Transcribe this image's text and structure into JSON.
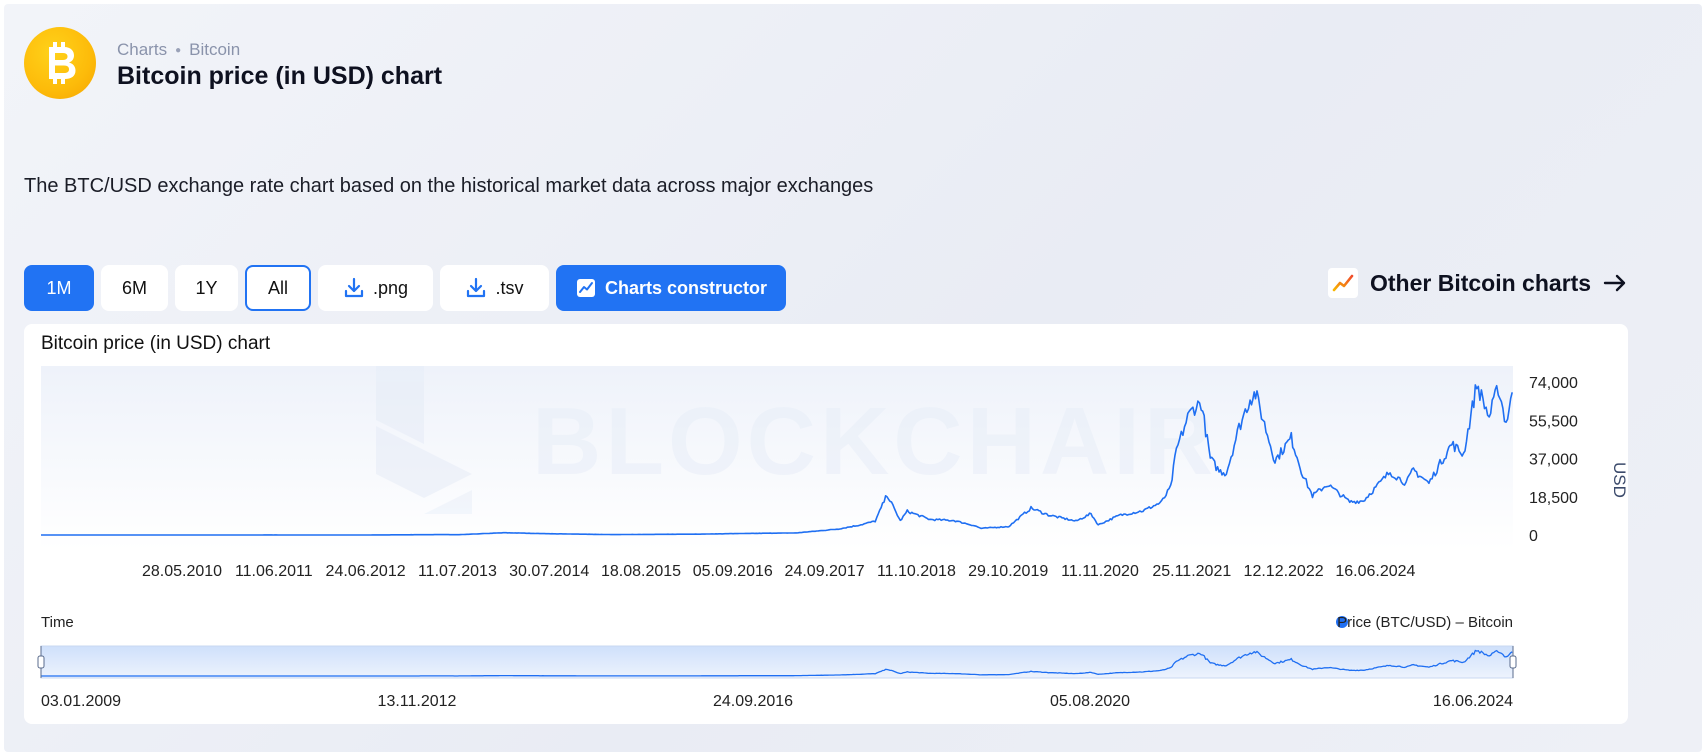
{
  "header": {
    "breadcrumbs": [
      "Charts",
      "Bitcoin"
    ],
    "title": "Bitcoin price (in USD) chart",
    "description": "The BTC/USD exchange rate chart based on the historical market data across major exchanges"
  },
  "toolbar": {
    "ranges": [
      "1M",
      "6M",
      "1Y",
      "All"
    ],
    "active_range": "1M",
    "outlined_range": "All",
    "download_png": ".png",
    "download_tsv": ".tsv",
    "constructor": "Charts constructor",
    "other_charts": "Other Bitcoin charts"
  },
  "colors": {
    "accent": "#2173f3",
    "line": "#1f6ff2",
    "logo": "#fdbb0a"
  },
  "icons": [
    "bitcoin-icon",
    "download-icon",
    "chart-icon",
    "trend-icon",
    "arrow-right-icon"
  ],
  "chart_data": {
    "type": "line",
    "title": "Bitcoin price (in USD) chart",
    "xlabel": "Time",
    "ylabel": "USD",
    "ylim": [
      0,
      74000
    ],
    "y_ticks": [
      "0",
      "18,500",
      "37,000",
      "55,500",
      "74,000"
    ],
    "y_tick_values": [
      0,
      18500,
      37000,
      55500,
      74000
    ],
    "x_ticks": [
      "28.05.2010",
      "11.06.2011",
      "24.06.2012",
      "11.07.2013",
      "30.07.2014",
      "18.08.2015",
      "05.09.2016",
      "24.09.2017",
      "11.10.2018",
      "29.10.2019",
      "11.11.2020",
      "25.11.2021",
      "12.12.2022",
      "16.06.2024"
    ],
    "x_range": [
      "03.01.2009",
      "08.2024"
    ],
    "grid": false,
    "legend": "bottom-right",
    "watermark": "BLOCKCHAIR",
    "series": [
      {
        "name": "Price (BTC/USD) – Bitcoin",
        "points": [
          [
            "2009-01-03",
            0
          ],
          [
            "2010-07-15",
            0.05
          ],
          [
            "2011-06-08",
            25
          ],
          [
            "2012-06-01",
            6
          ],
          [
            "2013-04-09",
            200
          ],
          [
            "2013-06-01",
            120
          ],
          [
            "2013-11-30",
            1100
          ],
          [
            "2014-06-01",
            600
          ],
          [
            "2015-01-14",
            200
          ],
          [
            "2016-01-01",
            430
          ],
          [
            "2016-06-18",
            750
          ],
          [
            "2017-01-01",
            1000
          ],
          [
            "2017-06-12",
            2900
          ],
          [
            "2017-09-01",
            4800
          ],
          [
            "2017-11-01",
            6700
          ],
          [
            "2017-12-17",
            19500
          ],
          [
            "2018-02-06",
            6900
          ],
          [
            "2018-03-05",
            11500
          ],
          [
            "2018-06-01",
            7500
          ],
          [
            "2018-09-01",
            7000
          ],
          [
            "2018-11-20",
            4500
          ],
          [
            "2018-12-15",
            3200
          ],
          [
            "2019-04-01",
            4100
          ],
          [
            "2019-06-26",
            13000
          ],
          [
            "2019-09-01",
            9700
          ],
          [
            "2019-12-17",
            6700
          ],
          [
            "2020-02-13",
            10300
          ],
          [
            "2020-03-12",
            4900
          ],
          [
            "2020-06-01",
            9500
          ],
          [
            "2020-09-01",
            11700
          ],
          [
            "2020-11-11",
            15800
          ],
          [
            "2020-12-17",
            23000
          ],
          [
            "2021-01-08",
            41000
          ],
          [
            "2021-02-21",
            57000
          ],
          [
            "2021-03-13",
            61000
          ],
          [
            "2021-04-14",
            64000
          ],
          [
            "2021-05-19",
            37000
          ],
          [
            "2021-06-22",
            31000
          ],
          [
            "2021-07-20",
            30000
          ],
          [
            "2021-09-07",
            52000
          ],
          [
            "2021-10-20",
            66000
          ],
          [
            "2021-11-10",
            68500
          ],
          [
            "2022-01-24",
            36000
          ],
          [
            "2022-03-28",
            47000
          ],
          [
            "2022-05-12",
            29000
          ],
          [
            "2022-06-18",
            19000
          ],
          [
            "2022-08-15",
            24500
          ],
          [
            "2022-11-09",
            16000
          ],
          [
            "2022-12-31",
            16500
          ],
          [
            "2023-04-14",
            30500
          ],
          [
            "2023-06-15",
            25000
          ],
          [
            "2023-07-13",
            31500
          ],
          [
            "2023-09-11",
            25000
          ],
          [
            "2023-10-24",
            34500
          ],
          [
            "2023-12-08",
            44000
          ],
          [
            "2024-01-23",
            39000
          ],
          [
            "2024-03-14",
            73000
          ],
          [
            "2024-05-01",
            57000
          ],
          [
            "2024-06-05",
            71500
          ],
          [
            "2024-07-05",
            54000
          ],
          [
            "2024-07-29",
            69000
          ]
        ]
      }
    ],
    "navigator": {
      "ticks": [
        "03.01.2009",
        "13.11.2012",
        "24.09.2016",
        "05.08.2020",
        "16.06.2024"
      ]
    }
  }
}
